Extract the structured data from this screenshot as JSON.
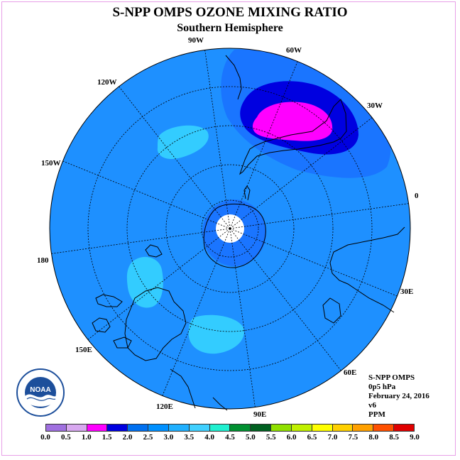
{
  "title": "S-NPP OMPS OZONE MIXING RATIO",
  "subtitle": "Southern Hemisphere",
  "longitude_labels": [
    "90W",
    "60W",
    "120W",
    "30W",
    "150W",
    "0",
    "180",
    "30E",
    "150E",
    "60E",
    "120E",
    "90E"
  ],
  "info": {
    "instrument": "S-NPP OMPS",
    "level": "0p5 hPa",
    "date": "February 24, 2016",
    "version": "v6",
    "units": "PPM"
  },
  "colorbar": {
    "tick_labels": [
      "0.0",
      "0.5",
      "1.0",
      "1.5",
      "2.0",
      "2.5",
      "3.0",
      "3.5",
      "4.0",
      "4.5",
      "5.0",
      "5.5",
      "6.0",
      "6.5",
      "7.0",
      "7.5",
      "8.0",
      "8.5",
      "9.0"
    ],
    "colors": [
      "#a070e0",
      "#d8a8f0",
      "#ff00ff",
      "#0000e0",
      "#0070f0",
      "#0090ff",
      "#20b0ff",
      "#40d0ff",
      "#20f0d0",
      "#009030",
      "#006020",
      "#90e000",
      "#c0f000",
      "#ffff00",
      "#ffd000",
      "#ffa000",
      "#ff5000",
      "#e00000",
      "#8b5a3c"
    ]
  },
  "field_colors": {
    "background": "#1e90ff",
    "light": "#33ccff",
    "medium": "#1a75ff",
    "dark": "#0000e0",
    "peak": "#ff00ff",
    "pole_hole": "#ffffff",
    "ring": "#33aaee"
  },
  "logo_text": "NOAA"
}
